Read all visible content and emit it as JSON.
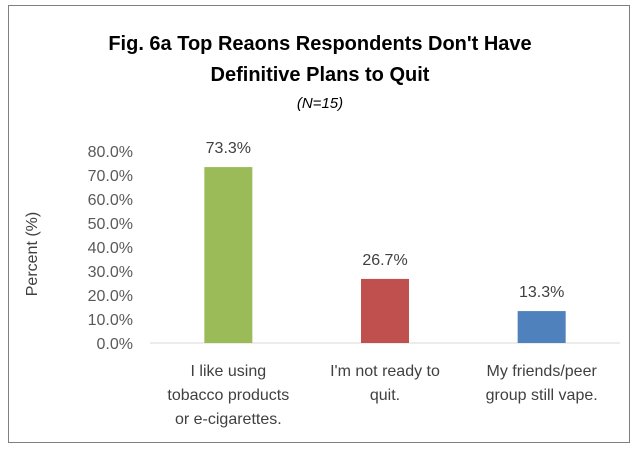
{
  "chart_data": {
    "type": "bar",
    "title_lines": [
      "Fig. 6a Top Reaons Respondents Don't Have",
      "Definitive Plans to Quit"
    ],
    "subtitle": "(N=15)",
    "xlabel": "",
    "ylabel": "Percent (%)",
    "ylim": [
      0,
      80
    ],
    "ytick_values": [
      0,
      10,
      20,
      30,
      40,
      50,
      60,
      70,
      80
    ],
    "ytick_labels": [
      "0.0%",
      "10.0%",
      "20.0%",
      "30.0%",
      "40.0%",
      "50.0%",
      "60.0%",
      "70.0%",
      "80.0%"
    ],
    "categories": [
      [
        "I like using",
        "tobacco products",
        "or e-cigarettes."
      ],
      [
        "I'm not ready to",
        "quit."
      ],
      [
        "My friends/peer",
        "group still vape."
      ]
    ],
    "values": [
      73.3,
      26.7,
      13.3
    ],
    "data_labels": [
      "73.3%",
      "26.7%",
      "13.3%"
    ],
    "colors": [
      "#9bbb59",
      "#c0504d",
      "#4f81bd"
    ],
    "grid": false,
    "legend": "none"
  }
}
